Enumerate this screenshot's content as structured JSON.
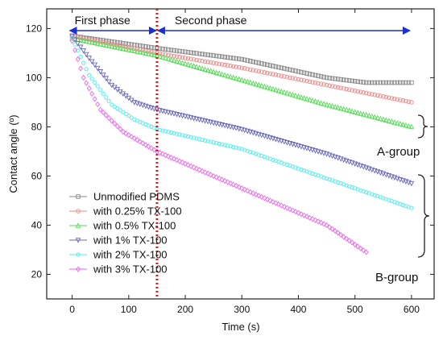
{
  "chart_data": {
    "type": "scatter",
    "xlabel": "Time (s)",
    "ylabel": "Contact angle (º)",
    "xlim": [
      -45,
      640
    ],
    "ylim": [
      10,
      128
    ],
    "xticks": [
      0,
      100,
      200,
      300,
      400,
      500,
      600
    ],
    "yticks": [
      20,
      40,
      60,
      80,
      100,
      120
    ],
    "phase_boundary_x": 150,
    "phases": [
      {
        "label": "First phase",
        "from": 0,
        "to": 150
      },
      {
        "label": "Second phase",
        "from": 150,
        "to": 600
      }
    ],
    "groups": [
      {
        "label": "A-group"
      },
      {
        "label": "B-group"
      }
    ],
    "legend_position": "bottom-left",
    "series": [
      {
        "name": "Unmodified  PDMS",
        "color": "#8a8a8a",
        "marker": "square",
        "x_end": 600,
        "points": [
          [
            0,
            117
          ],
          [
            150,
            112
          ],
          [
            300,
            107.5
          ],
          [
            450,
            100
          ],
          [
            520,
            98
          ],
          [
            600,
            98
          ]
        ]
      },
      {
        "name": "with 0.25% TX-100",
        "color": "#ee8888",
        "marker": "circle",
        "x_end": 600,
        "points": [
          [
            0,
            117
          ],
          [
            150,
            110
          ],
          [
            300,
            104
          ],
          [
            450,
            97
          ],
          [
            600,
            90
          ]
        ]
      },
      {
        "name": "with 0.5% TX-100",
        "color": "#55dd55",
        "marker": "triangle-up",
        "x_end": 600,
        "points": [
          [
            0,
            116
          ],
          [
            150,
            109
          ],
          [
            300,
            99
          ],
          [
            450,
            89
          ],
          [
            600,
            80
          ]
        ]
      },
      {
        "name": "with 1% TX-100",
        "color": "#6666bb",
        "marker": "triangle-down",
        "x_end": 600,
        "points": [
          [
            0,
            117
          ],
          [
            30,
            108
          ],
          [
            70,
            97
          ],
          [
            110,
            90
          ],
          [
            150,
            87
          ],
          [
            300,
            79
          ],
          [
            450,
            69
          ],
          [
            600,
            57
          ]
        ]
      },
      {
        "name": "with 2% TX-100",
        "color": "#55eeee",
        "marker": "hexagon",
        "x_end": 600,
        "points": [
          [
            0,
            116
          ],
          [
            30,
            101
          ],
          [
            70,
            89
          ],
          [
            110,
            83
          ],
          [
            150,
            79
          ],
          [
            300,
            71
          ],
          [
            450,
            59
          ],
          [
            600,
            47
          ]
        ]
      },
      {
        "name": "with 3% TX-100",
        "color": "#ee66ee",
        "marker": "diamond",
        "x_end": 520,
        "points": [
          [
            0,
            115
          ],
          [
            20,
            100
          ],
          [
            50,
            87
          ],
          [
            90,
            78
          ],
          [
            150,
            70
          ],
          [
            250,
            60
          ],
          [
            350,
            50
          ],
          [
            450,
            40
          ],
          [
            520,
            29
          ]
        ]
      }
    ]
  }
}
